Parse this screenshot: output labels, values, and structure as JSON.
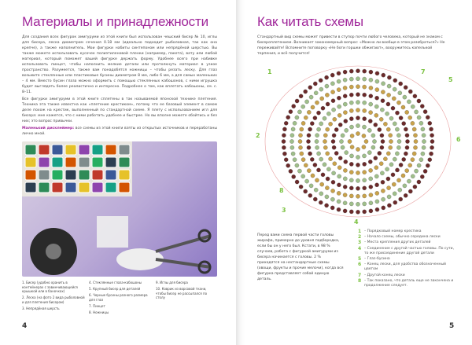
{
  "left_page": {
    "title": "Материалы и принадлежности",
    "paragraphs": [
      "Для создания всех фигурок амигуруми из этой книги был использован чешский бисер № 10, иглы для бисера, леска диаметром сечения 0.18 мм (идеально подходит рыболовная, так как она крепче), а также наполнитель. Мои фигурки набиты синтепоном или непрядёной шерстью. Вы также можете использовать кусочек полиэтиленовой пленки (например, пакета), вату или любой материал, который поможет вашей фигурке держать форму. Удобнее всего при набивке использовать пинцет, чтобы наполнить мелкие детали или протолкнуть материал в узкое пространство. Разумеется, также вам понадобятся ножницы – чтобы резать леску. Для глаз возьмите стеклянные или пластиковые бусины диаметром 8 мм, либо 6 мм, а для самых маленьких – 4 мм. Вместо бусин глаза можно оформить с помощью стеклянных кабошонов, с ними игрушка будет выглядеть более реалистично и интересно. Подробнее о том, как вплетать кабошоны, см. с. 8–11.",
      "Все фигурки амигуруми в этой книге сплетены в так называемой японской технике плетения. Техника эта также известна как «плетение крестиком», потому что ее базовый элемент в самом деле похож на крестик, выполненный по стандартной схеме. Я плету с использованием игл для бисера: мне кажется, что с ними работать удобнее и быстрее. Но вы вполне можете обойтись и без них; это вопрос привычки."
    ],
    "disclaimer_label": "Маленький дисклеймер:",
    "disclaimer_text": " все схемы из этой книги взяты из открытых источников и переработаны лично мной.",
    "captions": [
      "1. Бисер (удобно хранить в контейнерах с завинчивающейся крышкой или в баночках)",
      "2. Леска (на фото 2 вида рыболовной и для плетения бисером)",
      "3. Непрядёная шерсть",
      "4. Стеклянные глаза-кабошоны",
      "5. Крупный бисер для деталей",
      "6. Черные бусины разного размера для глаз",
      "7. Пинцет",
      "8. Ножницы",
      "9. Иглы для бисера",
      "10. Коврик из ворсовой ткани, чтобы бисер не рассыпался по столу"
    ],
    "page_number": "4"
  },
  "right_page": {
    "title": "Как читать схемы",
    "intro": "Стандартный вид схемы может привести в ступор почти любого человека, который не знаком с бисероплетением. Возникает закономерный вопрос: «Можно ли вообще в этом разобраться?» Не переживайте! Вспомните поговорку «Не боги горшки обжигают», вооружитесь капелькой терпения, и всё получится!",
    "body": "Перед вами схема первой части головы жирафа, примерно до уровня подбородка, если бы он у него был. Кстати, в 98 % случаев, работа с фигуркой амигуруми из бисера начинается с головы. 2 % приходятся на нестандартные схемы (овощи, фрукты и прочие мелочи), когда вся фигурка представляет собой единую деталь.",
    "legend": [
      {
        "n": "1",
        "text": "– Порядковый номер крестика"
      },
      {
        "n": "2",
        "text": "– Начало схемы, обычно середина лески"
      },
      {
        "n": "3",
        "text": "– Места крепления других деталей"
      },
      {
        "n": "4",
        "text": "– Соединение с другой частью головы. По сути, то же присоединение другой детали"
      },
      {
        "n": "5",
        "text": "– Глаз-бусина"
      },
      {
        "n": "6",
        "text": "– Конец лески, для удобства обозначенный цветом"
      },
      {
        "n": "7",
        "text": "– Другой конец лески"
      },
      {
        "n": "8",
        "text": "– Так показано, что деталь еще не закончена и продолжение следует."
      }
    ],
    "diagram_labels": [
      "1",
      "2",
      "3",
      "4",
      "5",
      "6",
      "7",
      "8"
    ],
    "page_number": "5"
  },
  "colors": {
    "title": "#a0279a",
    "legend_number": "#7cc242",
    "bead_brown": "#6b2a2a",
    "bead_gold": "#c9a24a",
    "bead_green": "#9fbf8a"
  }
}
